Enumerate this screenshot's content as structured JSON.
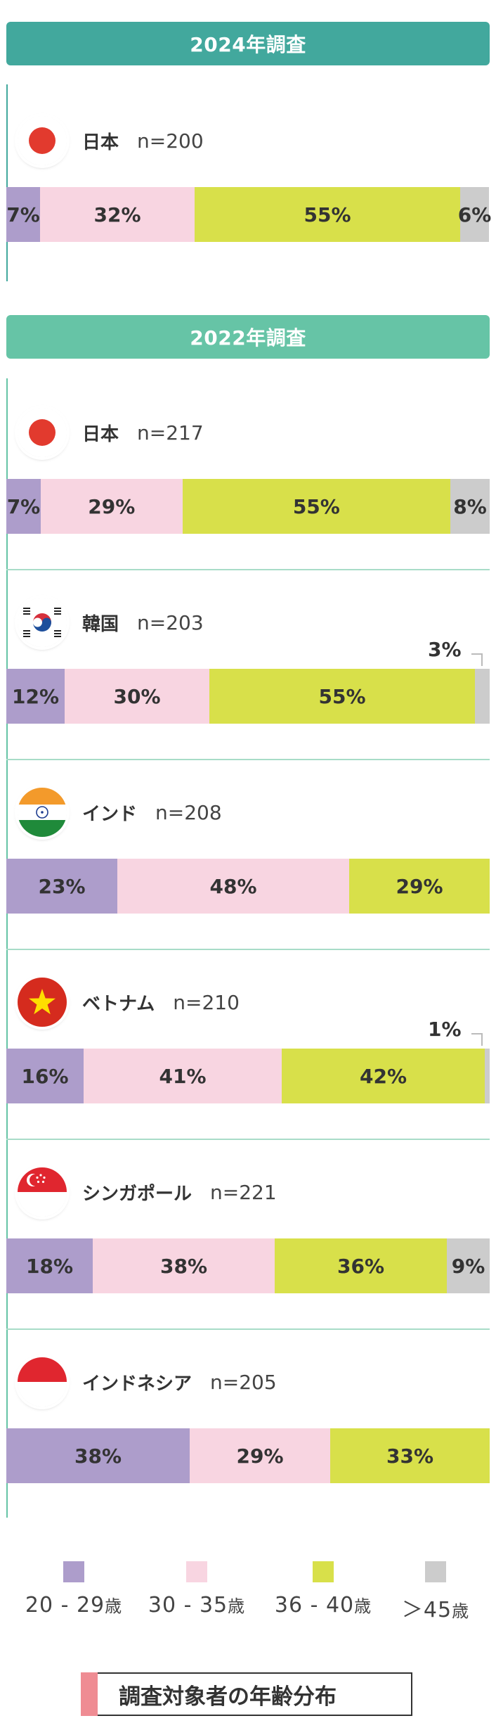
{
  "colors": {
    "age_20_29": "#ad9dcb",
    "age_30_35": "#f8d5e1",
    "age_36_40": "#d8e04a",
    "age_45_plus": "#cccccc",
    "header_2024": "#42a89d",
    "header_2022": "#66c4a6"
  },
  "sections": [
    {
      "title": "2024年調査"
    },
    {
      "title": "2022年調査"
    }
  ],
  "legend": {
    "items": [
      {
        "range": "20 - 29",
        "unit": "歳"
      },
      {
        "range": "30 - 35",
        "unit": "歳"
      },
      {
        "range": "36 - 40",
        "unit": "歳"
      },
      {
        "range": "＞45",
        "unit": "歳"
      }
    ]
  },
  "caption": "調査対象者の年齢分布",
  "chart_data": [
    {
      "type": "bar",
      "stacked": true,
      "orientation": "horizontal",
      "title": "2024年調査",
      "series_names": [
        "20-29歳",
        "30-35歳",
        "36-40歳",
        ">45歳"
      ],
      "rows": [
        {
          "country": "日本",
          "flag": "japan-flag",
          "n": "n=200",
          "values": [
            7,
            32,
            55,
            6
          ],
          "labels": [
            "7%",
            "32%",
            "55%",
            "6%"
          ]
        }
      ]
    },
    {
      "type": "bar",
      "stacked": true,
      "orientation": "horizontal",
      "title": "2022年調査",
      "series_names": [
        "20-29歳",
        "30-35歳",
        "36-40歳",
        ">45歳"
      ],
      "rows": [
        {
          "country": "日本",
          "flag": "japan-flag",
          "n": "n=217",
          "values": [
            7,
            29,
            55,
            8
          ],
          "labels": [
            "7%",
            "29%",
            "55%",
            "8%"
          ]
        },
        {
          "country": "韓国",
          "flag": "korea-flag",
          "n": "n=203",
          "values": [
            12,
            30,
            55,
            3
          ],
          "labels": [
            "12%",
            "30%",
            "55%",
            "3%"
          ]
        },
        {
          "country": "インド",
          "flag": "india-flag",
          "n": "n=208",
          "values": [
            23,
            48,
            29,
            0
          ],
          "labels": [
            "23%",
            "48%",
            "29%",
            ""
          ]
        },
        {
          "country": "ベトナム",
          "flag": "vietnam-flag",
          "n": "n=210",
          "values": [
            16,
            41,
            42,
            1
          ],
          "labels": [
            "16%",
            "41%",
            "42%",
            "1%"
          ]
        },
        {
          "country": "シンガポール",
          "flag": "singapore-flag",
          "n": "n=221",
          "values": [
            18,
            38,
            36,
            9
          ],
          "labels": [
            "18%",
            "38%",
            "36%",
            "9%"
          ]
        },
        {
          "country": "インドネシア",
          "flag": "indonesia-flag",
          "n": "n=205",
          "values": [
            38,
            29,
            33,
            0
          ],
          "labels": [
            "38%",
            "29%",
            "33%",
            ""
          ]
        }
      ]
    }
  ]
}
